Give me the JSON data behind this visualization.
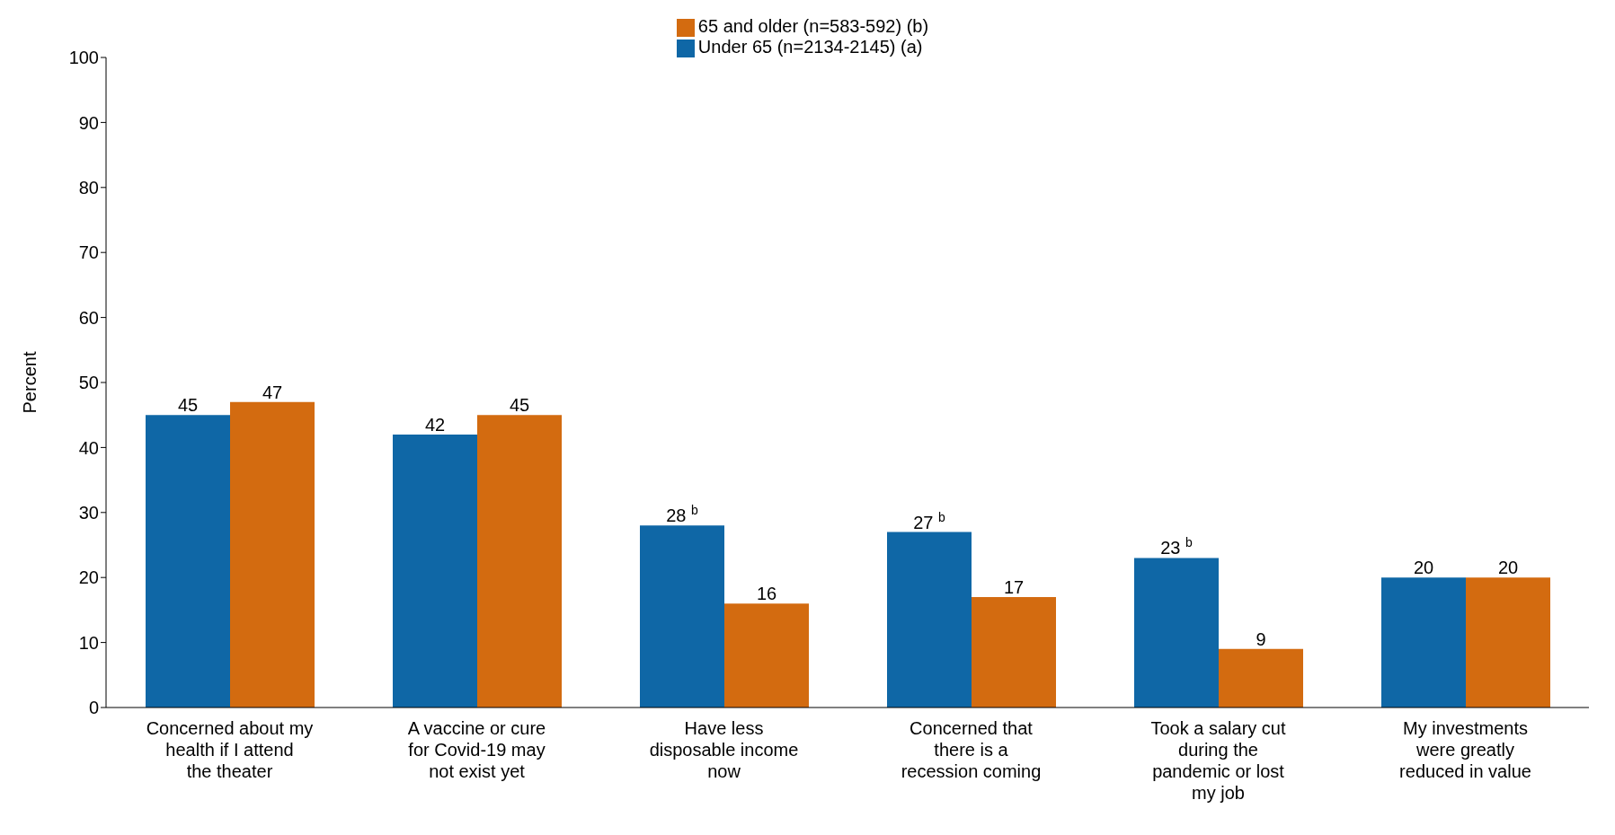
{
  "chart_data": {
    "type": "bar",
    "ylabel": "Percent",
    "categories": [
      "Concerned about my health if I attend the theater",
      "A vaccine or cure for Covid-19 may not exist yet",
      "Have less disposable income now",
      "Concerned that there is a recession coming",
      "Took a salary cut during the pandemic or lost my job",
      "My investments were greatly reduced in value"
    ],
    "series": [
      {
        "name": "Under 65 (n=2134-2145) (a)",
        "color": "#0f67a6",
        "values": [
          45,
          42,
          28,
          27,
          23,
          20
        ],
        "value_labels": [
          "45",
          "42",
          "28 $^{b}$",
          "27 $^{b}$",
          "23 $^{b}$",
          "20"
        ]
      },
      {
        "name": "65 and older (n=583-592) (b)",
        "color": "#d36b10",
        "values": [
          47,
          45,
          16,
          17,
          9,
          20
        ],
        "value_labels": [
          "47",
          "45",
          "16",
          "17",
          "9",
          "20"
        ]
      }
    ],
    "ylim": [
      0,
      100
    ],
    "yticks": [
      0,
      10,
      20,
      30,
      40,
      50,
      60,
      70,
      80,
      90,
      100
    ],
    "grid": false,
    "legend": "top"
  }
}
